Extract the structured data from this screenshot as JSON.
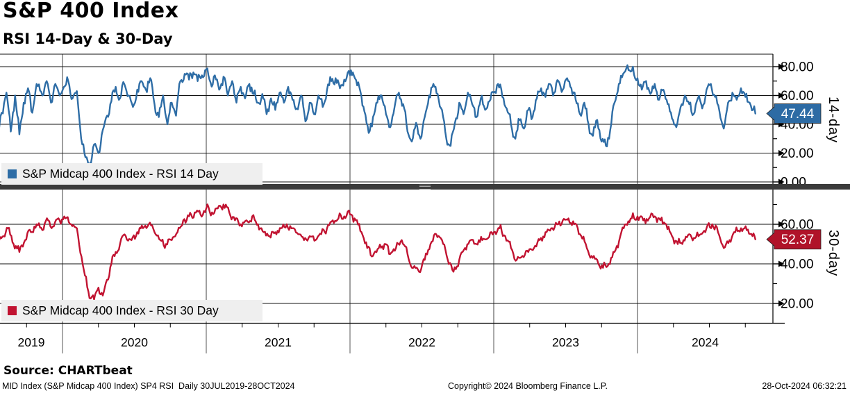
{
  "header": {
    "title": "S&P 400 Index",
    "subtitle": "RSI 14-Day & 30-Day"
  },
  "panels": {
    "top": {
      "legend": "S&P Midcap 400 Index - RSI 14 Day",
      "axis_label": "14-day",
      "last_value_label": "47.44"
    },
    "bottom": {
      "legend": "S&P Midcap 400 Index - RSI 30 Day",
      "axis_label": "30-day",
      "last_value_label": "52.37"
    }
  },
  "colors": {
    "rsi14": "#2E6DA6",
    "rsi30": "#C11331",
    "badge14": "#2D6BA4",
    "badge30": "#B01329",
    "legend_bg": "#EFEFEF",
    "separator": "#3B3B3B"
  },
  "x_axis": {
    "years": [
      "2019",
      "2020",
      "2021",
      "2022",
      "2023",
      "2024"
    ],
    "range_label": "30JUL2019-28OCT2024"
  },
  "footer": {
    "source": "Source: CHARTbeat",
    "left": "MID Index (S&P Midcap 400 Index) SP4 RSI  Daily 30JUL2019-28OCT2024",
    "copyright": "Copyright© 2024 Bloomberg Finance L.P.",
    "timestamp": "28-Oct-2024 06:32:21"
  },
  "chart_data": [
    {
      "type": "line",
      "title": "S&P Midcap 400 Index - RSI 14 Day",
      "panel": "top",
      "color": "#2E6DA6",
      "badge_color": "#2D6BA4",
      "ylim": [
        0,
        88
      ],
      "yticks_major": [
        0,
        20,
        40,
        60,
        80
      ],
      "yticks_minor": [
        10,
        30,
        50,
        70
      ],
      "x_range": [
        "2019-07-30",
        "2024-10-28"
      ],
      "last_value": 47.44,
      "jitter": 3.2,
      "points": [
        [
          2019.56,
          38
        ],
        [
          2019.61,
          62
        ],
        [
          2019.64,
          35
        ],
        [
          2019.67,
          60
        ],
        [
          2019.7,
          33
        ],
        [
          2019.73,
          55
        ],
        [
          2019.76,
          65
        ],
        [
          2019.79,
          48
        ],
        [
          2019.82,
          68
        ],
        [
          2019.86,
          60
        ],
        [
          2019.89,
          70
        ],
        [
          2019.92,
          55
        ],
        [
          2019.95,
          68
        ],
        [
          2019.98,
          60
        ],
        [
          2020.01,
          66
        ],
        [
          2020.04,
          70
        ],
        [
          2020.07,
          58
        ],
        [
          2020.1,
          63
        ],
        [
          2020.13,
          30
        ],
        [
          2020.16,
          17
        ],
        [
          2020.19,
          13
        ],
        [
          2020.22,
          26
        ],
        [
          2020.25,
          20
        ],
        [
          2020.28,
          36
        ],
        [
          2020.31,
          46
        ],
        [
          2020.34,
          56
        ],
        [
          2020.37,
          66
        ],
        [
          2020.4,
          58
        ],
        [
          2020.43,
          68
        ],
        [
          2020.46,
          60
        ],
        [
          2020.49,
          52
        ],
        [
          2020.52,
          64
        ],
        [
          2020.55,
          70
        ],
        [
          2020.58,
          64
        ],
        [
          2020.61,
          72
        ],
        [
          2020.64,
          54
        ],
        [
          2020.67,
          45
        ],
        [
          2020.7,
          60
        ],
        [
          2020.73,
          40
        ],
        [
          2020.76,
          55
        ],
        [
          2020.79,
          46
        ],
        [
          2020.82,
          70
        ],
        [
          2020.85,
          75
        ],
        [
          2020.88,
          71
        ],
        [
          2020.91,
          76
        ],
        [
          2020.94,
          70
        ],
        [
          2020.97,
          74
        ],
        [
          2021.0,
          78
        ],
        [
          2021.03,
          69
        ],
        [
          2021.06,
          74
        ],
        [
          2021.09,
          64
        ],
        [
          2021.12,
          73
        ],
        [
          2021.15,
          60
        ],
        [
          2021.18,
          70
        ],
        [
          2021.21,
          55
        ],
        [
          2021.24,
          66
        ],
        [
          2021.27,
          58
        ],
        [
          2021.3,
          68
        ],
        [
          2021.33,
          61
        ],
        [
          2021.36,
          55
        ],
        [
          2021.39,
          61
        ],
        [
          2021.42,
          47
        ],
        [
          2021.45,
          58
        ],
        [
          2021.48,
          50
        ],
        [
          2021.51,
          62
        ],
        [
          2021.54,
          55
        ],
        [
          2021.57,
          66
        ],
        [
          2021.6,
          57
        ],
        [
          2021.63,
          51
        ],
        [
          2021.66,
          60
        ],
        [
          2021.69,
          42
        ],
        [
          2021.72,
          55
        ],
        [
          2021.75,
          47
        ],
        [
          2021.78,
          60
        ],
        [
          2021.81,
          52
        ],
        [
          2021.84,
          64
        ],
        [
          2021.87,
          70
        ],
        [
          2021.9,
          72
        ],
        [
          2021.93,
          65
        ],
        [
          2021.96,
          71
        ],
        [
          2022.0,
          74
        ],
        [
          2022.02,
          76
        ],
        [
          2022.05,
          67
        ],
        [
          2022.08,
          59
        ],
        [
          2022.1,
          49
        ],
        [
          2022.13,
          34
        ],
        [
          2022.16,
          45
        ],
        [
          2022.19,
          55
        ],
        [
          2022.22,
          60
        ],
        [
          2022.25,
          47
        ],
        [
          2022.28,
          38
        ],
        [
          2022.31,
          52
        ],
        [
          2022.34,
          62
        ],
        [
          2022.37,
          54
        ],
        [
          2022.4,
          35
        ],
        [
          2022.43,
          28
        ],
        [
          2022.46,
          41
        ],
        [
          2022.49,
          30
        ],
        [
          2022.52,
          45
        ],
        [
          2022.55,
          60
        ],
        [
          2022.58,
          68
        ],
        [
          2022.61,
          61
        ],
        [
          2022.64,
          50
        ],
        [
          2022.67,
          30
        ],
        [
          2022.7,
          25
        ],
        [
          2022.73,
          41
        ],
        [
          2022.76,
          55
        ],
        [
          2022.79,
          47
        ],
        [
          2022.82,
          62
        ],
        [
          2022.85,
          54
        ],
        [
          2022.88,
          45
        ],
        [
          2022.91,
          58
        ],
        [
          2022.94,
          50
        ],
        [
          2022.97,
          56
        ],
        [
          2023.0,
          62
        ],
        [
          2023.03,
          68
        ],
        [
          2023.06,
          59
        ],
        [
          2023.09,
          51
        ],
        [
          2023.12,
          40
        ],
        [
          2023.15,
          30
        ],
        [
          2023.18,
          43
        ],
        [
          2023.21,
          37
        ],
        [
          2023.24,
          50
        ],
        [
          2023.27,
          45
        ],
        [
          2023.3,
          58
        ],
        [
          2023.33,
          65
        ],
        [
          2023.36,
          59
        ],
        [
          2023.39,
          68
        ],
        [
          2023.42,
          62
        ],
        [
          2023.45,
          70
        ],
        [
          2023.48,
          64
        ],
        [
          2023.51,
          72
        ],
        [
          2023.54,
          65
        ],
        [
          2023.57,
          57
        ],
        [
          2023.6,
          47
        ],
        [
          2023.63,
          55
        ],
        [
          2023.66,
          40
        ],
        [
          2023.69,
          32
        ],
        [
          2023.72,
          43
        ],
        [
          2023.75,
          28
        ],
        [
          2023.78,
          25
        ],
        [
          2023.81,
          36
        ],
        [
          2023.84,
          55
        ],
        [
          2023.87,
          68
        ],
        [
          2023.9,
          75
        ],
        [
          2023.93,
          81
        ],
        [
          2023.96,
          77
        ],
        [
          2024.0,
          72
        ],
        [
          2024.03,
          64
        ],
        [
          2024.06,
          70
        ],
        [
          2024.09,
          61
        ],
        [
          2024.12,
          68
        ],
        [
          2024.15,
          57
        ],
        [
          2024.18,
          64
        ],
        [
          2024.21,
          54
        ],
        [
          2024.24,
          44
        ],
        [
          2024.27,
          38
        ],
        [
          2024.3,
          52
        ],
        [
          2024.33,
          60
        ],
        [
          2024.36,
          54
        ],
        [
          2024.39,
          47
        ],
        [
          2024.42,
          58
        ],
        [
          2024.45,
          51
        ],
        [
          2024.48,
          64
        ],
        [
          2024.51,
          68
        ],
        [
          2024.54,
          59
        ],
        [
          2024.57,
          49
        ],
        [
          2024.6,
          37
        ],
        [
          2024.63,
          55
        ],
        [
          2024.66,
          62
        ],
        [
          2024.69,
          57
        ],
        [
          2024.72,
          65
        ],
        [
          2024.75,
          59
        ],
        [
          2024.78,
          55
        ],
        [
          2024.82,
          47.44
        ]
      ]
    },
    {
      "type": "line",
      "title": "S&P Midcap 400 Index - RSI 30 Day",
      "panel": "bottom",
      "color": "#C11331",
      "badge_color": "#B01329",
      "ylim": [
        10,
        76
      ],
      "yticks_major": [
        20,
        40,
        60
      ],
      "yticks_minor": [
        30,
        50,
        70
      ],
      "x_range": [
        "2019-07-30",
        "2024-10-28"
      ],
      "last_value": 52.37,
      "jitter": 1.9,
      "points": [
        [
          2019.56,
          52
        ],
        [
          2019.62,
          58
        ],
        [
          2019.66,
          50
        ],
        [
          2019.7,
          46
        ],
        [
          2019.74,
          52
        ],
        [
          2019.78,
          56
        ],
        [
          2019.82,
          60
        ],
        [
          2019.86,
          57
        ],
        [
          2019.9,
          62
        ],
        [
          2019.94,
          59
        ],
        [
          2019.98,
          62
        ],
        [
          2020.02,
          63
        ],
        [
          2020.06,
          60
        ],
        [
          2020.1,
          58
        ],
        [
          2020.14,
          40
        ],
        [
          2020.18,
          26
        ],
        [
          2020.22,
          22
        ],
        [
          2020.25,
          28
        ],
        [
          2020.28,
          24
        ],
        [
          2020.31,
          32
        ],
        [
          2020.34,
          40
        ],
        [
          2020.37,
          46
        ],
        [
          2020.4,
          50
        ],
        [
          2020.44,
          54
        ],
        [
          2020.48,
          52
        ],
        [
          2020.52,
          56
        ],
        [
          2020.56,
          58
        ],
        [
          2020.6,
          60
        ],
        [
          2020.64,
          56
        ],
        [
          2020.68,
          52
        ],
        [
          2020.72,
          50
        ],
        [
          2020.76,
          52
        ],
        [
          2020.8,
          56
        ],
        [
          2020.84,
          62
        ],
        [
          2020.88,
          64
        ],
        [
          2020.92,
          66
        ],
        [
          2020.96,
          65
        ],
        [
          2021.0,
          68
        ],
        [
          2021.04,
          66
        ],
        [
          2021.08,
          68
        ],
        [
          2021.12,
          70
        ],
        [
          2021.16,
          66
        ],
        [
          2021.2,
          62
        ],
        [
          2021.24,
          60
        ],
        [
          2021.28,
          62
        ],
        [
          2021.32,
          64
        ],
        [
          2021.36,
          60
        ],
        [
          2021.4,
          56
        ],
        [
          2021.44,
          54
        ],
        [
          2021.48,
          56
        ],
        [
          2021.52,
          58
        ],
        [
          2021.56,
          60
        ],
        [
          2021.6,
          58
        ],
        [
          2021.64,
          55
        ],
        [
          2021.68,
          52
        ],
        [
          2021.72,
          54
        ],
        [
          2021.76,
          52
        ],
        [
          2021.8,
          55
        ],
        [
          2021.84,
          58
        ],
        [
          2021.88,
          62
        ],
        [
          2021.92,
          63
        ],
        [
          2021.96,
          64
        ],
        [
          2022.0,
          65
        ],
        [
          2022.04,
          62
        ],
        [
          2022.08,
          56
        ],
        [
          2022.12,
          48
        ],
        [
          2022.16,
          44
        ],
        [
          2022.2,
          48
        ],
        [
          2022.24,
          50
        ],
        [
          2022.28,
          45
        ],
        [
          2022.32,
          48
        ],
        [
          2022.36,
          52
        ],
        [
          2022.4,
          45
        ],
        [
          2022.44,
          38
        ],
        [
          2022.48,
          36
        ],
        [
          2022.52,
          42
        ],
        [
          2022.56,
          50
        ],
        [
          2022.6,
          55
        ],
        [
          2022.64,
          52
        ],
        [
          2022.68,
          42
        ],
        [
          2022.72,
          36
        ],
        [
          2022.76,
          42
        ],
        [
          2022.8,
          48
        ],
        [
          2022.84,
          52
        ],
        [
          2022.88,
          50
        ],
        [
          2022.92,
          52
        ],
        [
          2022.96,
          53
        ],
        [
          2023.0,
          56
        ],
        [
          2023.04,
          58
        ],
        [
          2023.08,
          54
        ],
        [
          2023.12,
          48
        ],
        [
          2023.16,
          42
        ],
        [
          2023.2,
          44
        ],
        [
          2023.24,
          46
        ],
        [
          2023.28,
          48
        ],
        [
          2023.32,
          52
        ],
        [
          2023.36,
          56
        ],
        [
          2023.4,
          58
        ],
        [
          2023.44,
          60
        ],
        [
          2023.48,
          62
        ],
        [
          2023.52,
          63
        ],
        [
          2023.56,
          60
        ],
        [
          2023.6,
          55
        ],
        [
          2023.64,
          50
        ],
        [
          2023.68,
          44
        ],
        [
          2023.72,
          42
        ],
        [
          2023.76,
          38
        ],
        [
          2023.8,
          40
        ],
        [
          2023.84,
          46
        ],
        [
          2023.88,
          54
        ],
        [
          2023.92,
          60
        ],
        [
          2023.96,
          63
        ],
        [
          2024.0,
          64
        ],
        [
          2024.04,
          62
        ],
        [
          2024.08,
          63
        ],
        [
          2024.12,
          64
        ],
        [
          2024.16,
          62
        ],
        [
          2024.2,
          60
        ],
        [
          2024.24,
          54
        ],
        [
          2024.28,
          50
        ],
        [
          2024.32,
          52
        ],
        [
          2024.36,
          55
        ],
        [
          2024.4,
          53
        ],
        [
          2024.44,
          55
        ],
        [
          2024.48,
          58
        ],
        [
          2024.52,
          60
        ],
        [
          2024.56,
          56
        ],
        [
          2024.6,
          48
        ],
        [
          2024.64,
          52
        ],
        [
          2024.68,
          56
        ],
        [
          2024.72,
          58
        ],
        [
          2024.76,
          57
        ],
        [
          2024.8,
          54
        ],
        [
          2024.82,
          52.37
        ]
      ]
    }
  ]
}
